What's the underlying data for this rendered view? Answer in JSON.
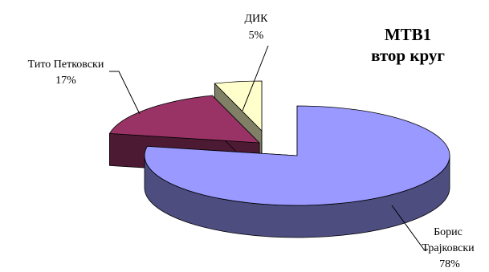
{
  "chart_data": {
    "type": "pie",
    "title": "МТВ1",
    "subtitle": "втор круг",
    "slices": [
      {
        "name": "Борис Трајковски",
        "name_lines": [
          "Борис",
          "Трајковски"
        ],
        "value": 78,
        "value_label": "78%",
        "color": "#9999ff",
        "side_color": "#4d4d80"
      },
      {
        "name": "Тито Петковски",
        "name_lines": [
          "Тито Петковски"
        ],
        "value": 17,
        "value_label": "17%",
        "color": "#993366",
        "side_color": "#4d1a33"
      },
      {
        "name": "ДИК",
        "name_lines": [
          "ДИК"
        ],
        "value": 5,
        "value_label": "5%",
        "color": "#ffffcc",
        "side_color": "#808066"
      }
    ],
    "style": "3d-exploded",
    "legend": "none"
  }
}
